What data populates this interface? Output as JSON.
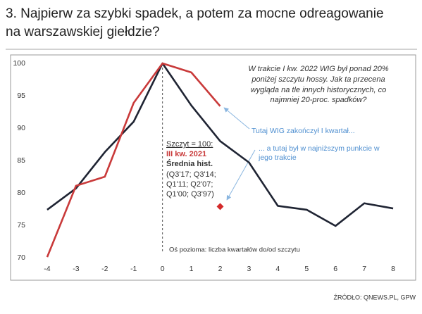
{
  "title": [
    "3. Najpierw za szybki spadek, a potem za mocne odreagowanie",
    "na warszawskiej giełdzie?"
  ],
  "source": "ŹRÓDŁO: QNEWS.PL, GPW",
  "chart_data": {
    "type": "line",
    "x": [
      -4,
      -3,
      -2,
      -1,
      0,
      1,
      2,
      3,
      4,
      5,
      6,
      7,
      8
    ],
    "series": [
      {
        "color": "#1f2433",
        "values": [
          77.4,
          80.7,
          86.3,
          91,
          100,
          93.5,
          88,
          84.7,
          78,
          77.4,
          74.9,
          78.4,
          77.6
        ]
      },
      {
        "color": "#c93a3a",
        "values": [
          70.1,
          81.1,
          82.5,
          93.9,
          100,
          98.6,
          93.4,
          null,
          null,
          null,
          null,
          null,
          null
        ]
      }
    ],
    "point": {
      "x": 2,
      "y": 77.9,
      "color": "#d42a2a"
    },
    "xlim": [
      -4.4,
      8.4
    ],
    "ylim": [
      70,
      100
    ],
    "xticks": [
      -4,
      -3,
      -2,
      -1,
      0,
      1,
      2,
      3,
      4,
      5,
      6,
      7,
      8
    ],
    "yticks": [
      70,
      75,
      80,
      85,
      90,
      95,
      100
    ],
    "peak_line_x": 0,
    "note": [
      "W trakcie I kw. 2022 WIG był ponad 20%",
      "poniżej szczytu hossy. Jak ta przecena",
      "wygląda na tle innych historycznych, co",
      "najmniej 20-proc. spadków?"
    ],
    "annotation_end": "Tutaj WIG zakończył I kwartał...",
    "annotation_low": [
      "... a tutaj był w najniższym punkcie w",
      "jego trakcie"
    ],
    "peak_label": "Szczyt = 100:",
    "peak_current": "III kw. 2021",
    "peak_average": "Średnia hist.",
    "peak_quarters": [
      "(Q3'17; Q3'14;",
      "Q1'11; Q2'07;",
      "Q1'00; Q3'97)"
    ],
    "axis_note": "Oś pozioma: liczba kwartałów do/od szczytu"
  }
}
